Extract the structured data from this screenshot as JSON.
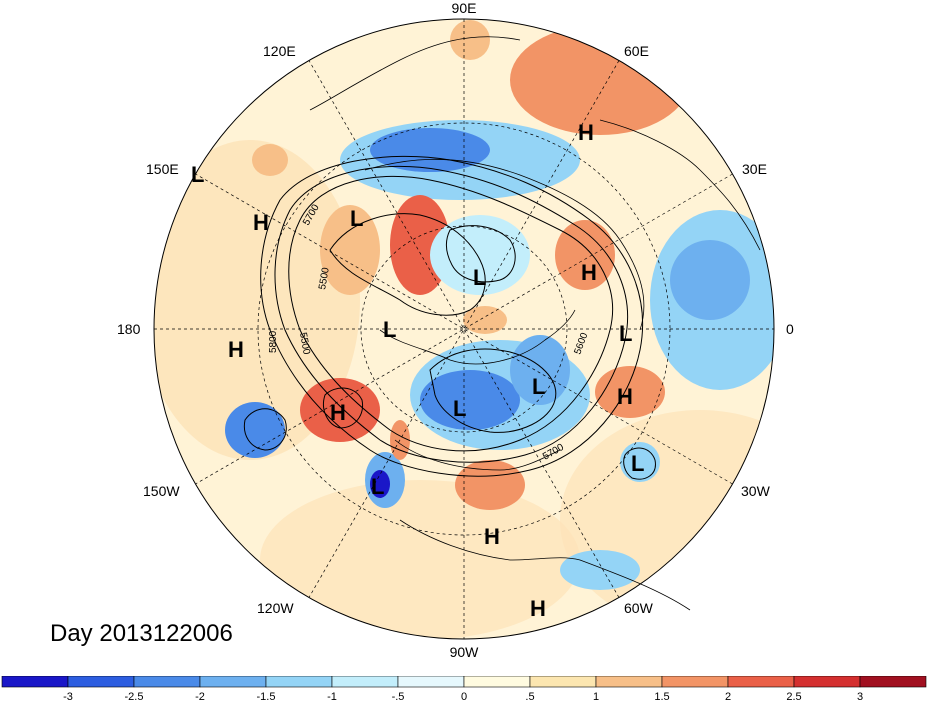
{
  "date_label": "Day 2013122006",
  "lon_labels": [
    {
      "name": "90E",
      "text": "90E"
    },
    {
      "name": "60E",
      "text": "60E"
    },
    {
      "name": "30E",
      "text": "30E"
    },
    {
      "name": "0",
      "text": "0"
    },
    {
      "name": "30W",
      "text": "30W"
    },
    {
      "name": "60W",
      "text": "60W"
    },
    {
      "name": "90W",
      "text": "90W"
    },
    {
      "name": "120W",
      "text": "120W"
    },
    {
      "name": "150W",
      "text": "150W"
    },
    {
      "name": "180",
      "text": "180"
    },
    {
      "name": "150E",
      "text": "150E"
    },
    {
      "name": "120E",
      "text": "120E"
    }
  ],
  "pressure_centers": [
    {
      "type": "H",
      "label": "H"
    },
    {
      "type": "H",
      "label": "H"
    },
    {
      "type": "H",
      "label": "H"
    },
    {
      "type": "H",
      "label": "H"
    },
    {
      "type": "H",
      "label": "H"
    },
    {
      "type": "H",
      "label": "H"
    },
    {
      "type": "H",
      "label": "H"
    },
    {
      "type": "H",
      "label": "H"
    },
    {
      "type": "L",
      "label": "L"
    },
    {
      "type": "L",
      "label": "L"
    },
    {
      "type": "L",
      "label": "L"
    },
    {
      "type": "L",
      "label": "L"
    },
    {
      "type": "L",
      "label": "L"
    },
    {
      "type": "L",
      "label": "L"
    },
    {
      "type": "L",
      "label": "L"
    },
    {
      "type": "L",
      "label": "L"
    },
    {
      "type": "L",
      "label": "L"
    }
  ],
  "contour_labels": [
    "5700",
    "5500",
    "5500",
    "5800",
    "5600",
    "5700"
  ],
  "colorbar": {
    "ticks": [
      "-3",
      "-2.5",
      "-2",
      "-1.5",
      "-1",
      "-.5",
      "0",
      ".5",
      "1",
      "1.5",
      "2",
      "2.5",
      "3"
    ],
    "colors": [
      "#1a17c8",
      "#2c5de0",
      "#4a8ae8",
      "#6db0ef",
      "#94d4f6",
      "#c3eefb",
      "#e6f8fd",
      "#fffbe0",
      "#fce6b0",
      "#f7bf88",
      "#f29466",
      "#ea6048",
      "#d42f2f",
      "#a11020"
    ]
  },
  "anomaly_palette": {
    "deep_negative": "#2c5de0",
    "negative": "#6db0ef",
    "light_negative": "#c3eefb",
    "neutral": "#fffbe0",
    "light_positive": "#fce6b0",
    "positive": "#f29466",
    "deep_positive": "#d42f2f"
  }
}
